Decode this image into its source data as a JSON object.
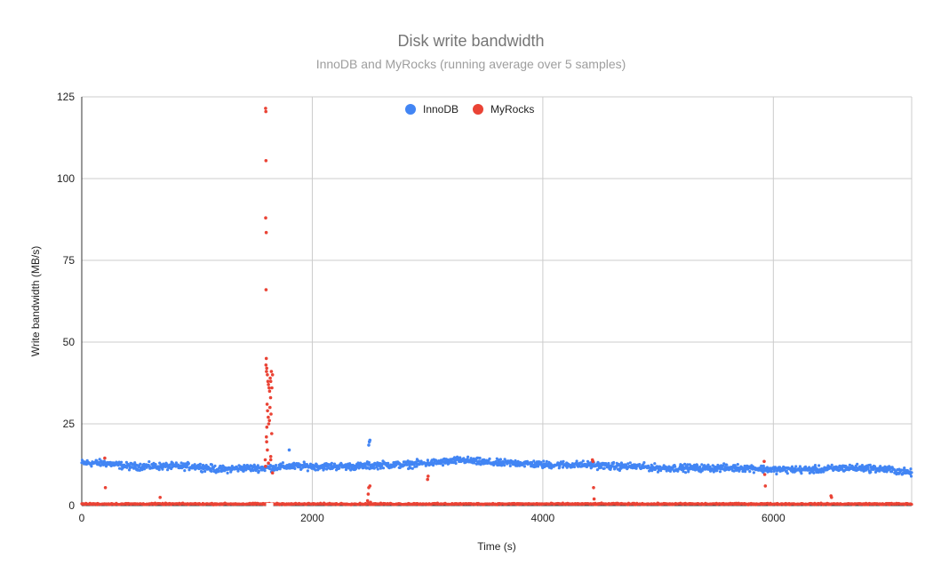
{
  "chart_data": {
    "type": "scatter",
    "title": "Disk write bandwidth",
    "subtitle": "InnoDB and MyRocks (running average over 5 samples)",
    "xlabel": "Time (s)",
    "ylabel": "Write bandwidth (MB/s)",
    "xlim": [
      0,
      7200
    ],
    "ylim": [
      0,
      125
    ],
    "x_ticks": [
      0,
      2000,
      4000,
      6000
    ],
    "x_tick_labels": [
      "0",
      "2000",
      "4000",
      "6000"
    ],
    "y_ticks": [
      0,
      25,
      50,
      75,
      100,
      125
    ],
    "y_tick_labels": [
      "0",
      "25",
      "50",
      "75",
      "100",
      "125"
    ],
    "grid": true,
    "legend_position": "top",
    "series": [
      {
        "name": "InnoDB",
        "color": "#4285f4",
        "baseline": {
          "x": [
            0,
            200,
            400,
            600,
            800,
            1000,
            1200,
            1400,
            1600,
            1800,
            2000,
            2200,
            2400,
            2600,
            2800,
            3000,
            3200,
            3300,
            3400,
            3600,
            3800,
            4000,
            4200,
            4400,
            4600,
            4800,
            5000,
            5200,
            5400,
            5600,
            5800,
            6000,
            6200,
            6400,
            6600,
            6800,
            7000,
            7200
          ],
          "y": [
            13,
            13,
            12,
            12,
            12,
            12,
            11,
            11.5,
            11.5,
            12,
            12,
            12,
            12,
            12.5,
            12.5,
            13,
            13.5,
            14,
            13.5,
            13,
            13,
            12.5,
            12.5,
            12.5,
            12,
            12,
            11.5,
            11.5,
            11.5,
            11.5,
            11.5,
            11,
            11,
            11,
            11.5,
            11.5,
            11,
            10
          ]
        },
        "outliers": {
          "x": [
            2490,
            2495,
            2500,
            1800
          ],
          "y": [
            18.5,
            19.5,
            20,
            17
          ]
        }
      },
      {
        "name": "MyRocks",
        "color": "#ea4335",
        "baseline": {
          "x": [
            0,
            7200
          ],
          "y": [
            0.5,
            0.5
          ]
        },
        "outliers": {
          "x": [
            1595,
            1597,
            1598,
            1596,
            1600,
            1599,
            1601,
            1598,
            1603,
            1605,
            1610,
            1615,
            1620,
            1625,
            1630,
            1635,
            1640,
            1645,
            1650,
            1655,
            1608,
            1612,
            1618,
            1622,
            1628,
            1633,
            1638,
            1642,
            1648,
            1602,
            1604,
            1606,
            1592,
            1594,
            1620,
            1640,
            200,
            205,
            680,
            2480,
            2485,
            2490,
            2500,
            2505,
            3000,
            3005,
            4430,
            4435,
            4440,
            4445,
            5920,
            5925,
            5930,
            6500,
            6505,
            1610,
            1640,
            1655
          ],
          "y": [
            121.5,
            120.5,
            105.5,
            88,
            83.5,
            66,
            45,
            43,
            41,
            42,
            40,
            38,
            37,
            36,
            35,
            39,
            38,
            41,
            36,
            40,
            31,
            29,
            27,
            25,
            26,
            30,
            33,
            28,
            22,
            21,
            19.5,
            24,
            14,
            12,
            13,
            14,
            14.5,
            5.5,
            2.5,
            1.5,
            3.5,
            5.5,
            6,
            1,
            8,
            9,
            14,
            13.5,
            5.5,
            2,
            13.5,
            9.5,
            6,
            3,
            2.5,
            17,
            15,
            10
          ]
        }
      }
    ]
  }
}
